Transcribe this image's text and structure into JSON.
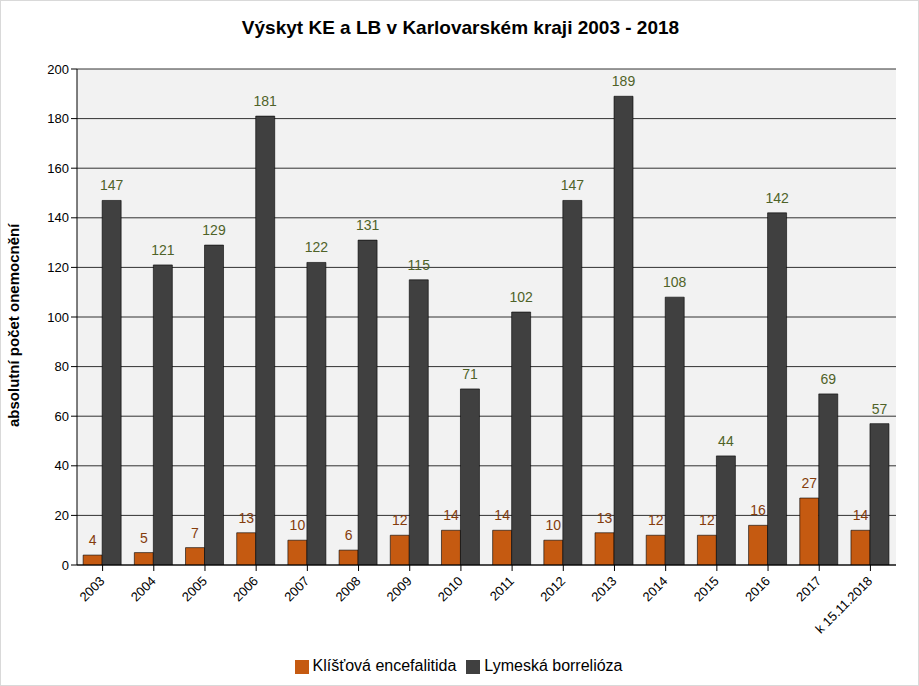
{
  "chart_data": {
    "type": "bar",
    "title": "Výskyt KE a LB v Karlovarském kraji 2003 - 2018",
    "y_label": "absolutní počet onemocnění",
    "categories": [
      "2003",
      "2004",
      "2005",
      "2006",
      "2007",
      "2008",
      "2009",
      "2010",
      "2011",
      "2012",
      "2013",
      "2014",
      "2015",
      "2016",
      "2017",
      "k 15.11.2018"
    ],
    "series": [
      {
        "name": "Klíšťová encefalitida",
        "color": "#c55a11",
        "values": [
          4,
          5,
          7,
          13,
          10,
          6,
          12,
          14,
          14,
          10,
          13,
          12,
          12,
          16,
          27,
          14
        ]
      },
      {
        "name": "Lymeská borrelióza",
        "color": "#404040",
        "values": [
          147,
          121,
          129,
          181,
          122,
          131,
          115,
          71,
          102,
          147,
          189,
          108,
          44,
          142,
          69,
          57
        ]
      }
    ],
    "ylim": [
      0,
      200
    ],
    "yticks": [
      0,
      20,
      40,
      60,
      80,
      100,
      120,
      140,
      160,
      180,
      200
    ],
    "grid": true,
    "legend": "bottom",
    "data_labels": true
  }
}
